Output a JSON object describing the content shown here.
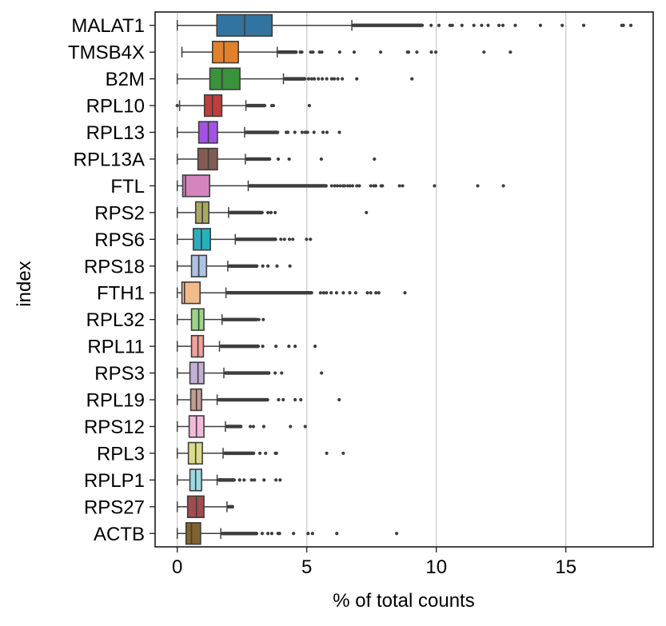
{
  "chart_data": {
    "type": "box",
    "orientation": "horizontal",
    "title": "",
    "xlabel": "% of total counts",
    "ylabel": "index",
    "xlim": [
      -0.9,
      18.3
    ],
    "xticks": [
      0,
      5,
      10,
      15
    ],
    "xtick_labels": [
      "0",
      "5",
      "10",
      "15"
    ],
    "grid": "x",
    "categories": [
      "MALAT1",
      "TMSB4X",
      "B2M",
      "RPL10",
      "RPL13",
      "RPL13A",
      "FTL",
      "RPS2",
      "RPS6",
      "RPS18",
      "FTH1",
      "RPL32",
      "RPL11",
      "RPS3",
      "RPL19",
      "RPS12",
      "RPL3",
      "RPLP1",
      "RPS27",
      "ACTB"
    ],
    "series": [
      {
        "name": "MALAT1",
        "color": "#3274a1",
        "whisker_low": 0.0,
        "q1": 1.53,
        "median": 2.6,
        "q3": 3.66,
        "whisker_high": 6.74,
        "dense_outliers_to": 9.52,
        "outliers": [
          9.8,
          10.1,
          10.53,
          10.62,
          10.99,
          11.45,
          11.75,
          12.0,
          12.42,
          12.57,
          13.05,
          14.02,
          14.86,
          15.69,
          17.16,
          17.22,
          17.51
        ]
      },
      {
        "name": "TMSB4X",
        "color": "#e1812c",
        "whisker_low": 0.18,
        "q1": 1.36,
        "median": 1.8,
        "q3": 2.36,
        "whisker_high": 3.86,
        "dense_outliers_to": 4.65,
        "outliers": [
          4.75,
          4.81,
          5.15,
          5.24,
          5.49,
          5.58,
          6.27,
          6.83,
          7.85,
          8.89,
          8.93,
          9.25,
          9.81,
          9.98,
          11.84,
          12.86
        ]
      },
      {
        "name": "B2M",
        "color": "#3a923a",
        "whisker_low": 0.0,
        "q1": 1.26,
        "median": 1.73,
        "q3": 2.42,
        "whisker_high": 4.1,
        "dense_outliers_to": 4.99,
        "outliers": [
          5.07,
          5.19,
          5.29,
          5.45,
          5.6,
          5.77,
          5.96,
          6.06,
          6.2,
          6.37,
          6.93,
          9.06
        ]
      },
      {
        "name": "RPL10",
        "color": "#c03d3e",
        "whisker_low": 0.09,
        "q1": 1.05,
        "median": 1.36,
        "q3": 1.72,
        "whisker_high": 2.65,
        "dense_outliers_to": 3.44,
        "outliers": [
          0.0,
          3.65,
          3.71,
          5.1
        ]
      },
      {
        "name": "RPL13",
        "color": "#a352e8",
        "whisker_low": 0.0,
        "q1": 0.83,
        "median": 1.2,
        "q3": 1.55,
        "whisker_high": 2.6,
        "dense_outliers_to": 3.94,
        "outliers": [
          4.21,
          4.27,
          4.54,
          4.82,
          4.94,
          5.03,
          5.28,
          5.63,
          5.78,
          6.26
        ]
      },
      {
        "name": "RPL13A",
        "color": "#845b53",
        "whisker_low": 0.0,
        "q1": 0.8,
        "median": 1.2,
        "q3": 1.55,
        "whisker_high": 2.63,
        "dense_outliers_to": 3.63,
        "outliers": [
          3.9,
          4.32,
          5.56,
          7.61
        ]
      },
      {
        "name": "FTL",
        "color": "#d684bd",
        "whisker_low": 0.0,
        "q1": 0.21,
        "median": 0.32,
        "q3": 1.25,
        "whisker_high": 2.74,
        "dense_outliers_to": 5.81,
        "outliers": [
          5.96,
          6.08,
          6.18,
          6.29,
          6.4,
          6.46,
          6.58,
          6.67,
          6.77,
          6.93,
          7.03,
          7.47,
          7.59,
          7.66,
          7.87,
          7.92,
          8.58,
          8.7,
          9.93,
          11.6,
          12.59
        ]
      },
      {
        "name": "RPS2",
        "color": "#a9aa60",
        "whisker_low": 0.0,
        "q1": 0.71,
        "median": 0.97,
        "q3": 1.22,
        "whisker_high": 1.98,
        "dense_outliers_to": 3.34,
        "outliers": [
          3.5,
          3.62,
          3.78,
          7.3
        ]
      },
      {
        "name": "RPS6",
        "color": "#2aaebd",
        "whisker_low": 0.0,
        "q1": 0.62,
        "median": 0.93,
        "q3": 1.28,
        "whisker_high": 2.24,
        "dense_outliers_to": 3.86,
        "outliers": [
          4.0,
          4.14,
          4.33,
          4.46,
          4.99,
          5.14
        ]
      },
      {
        "name": "RPS18",
        "color": "#adc3e0",
        "whisker_low": 0.0,
        "q1": 0.55,
        "median": 0.83,
        "q3": 1.13,
        "whisker_high": 1.95,
        "dense_outliers_to": 3.14,
        "outliers": [
          3.3,
          3.5,
          3.85,
          4.35
        ]
      },
      {
        "name": "FTH1",
        "color": "#f1bb87",
        "whisker_low": 0.0,
        "q1": 0.18,
        "median": 0.28,
        "q3": 0.88,
        "whisker_high": 1.88,
        "dense_outliers_to": 5.25,
        "outliers": [
          5.53,
          5.65,
          5.76,
          5.94,
          6.15,
          6.41,
          6.66,
          6.89,
          7.34,
          7.47,
          7.67,
          7.78,
          8.79
        ]
      },
      {
        "name": "RPL32",
        "color": "#9bd58a",
        "whisker_low": 0.0,
        "q1": 0.55,
        "median": 0.83,
        "q3": 1.03,
        "whisker_high": 1.73,
        "dense_outliers_to": 3.12,
        "outliers": [
          3.15,
          3.32
        ]
      },
      {
        "name": "RPL11",
        "color": "#f5a09d",
        "whisker_low": 0.0,
        "q1": 0.55,
        "median": 0.8,
        "q3": 1.01,
        "whisker_high": 1.63,
        "dense_outliers_to": 3.19,
        "outliers": [
          3.3,
          3.81,
          4.31,
          4.55,
          5.32
        ]
      },
      {
        "name": "RPS3",
        "color": "#c5b0d5",
        "whisker_low": 0.0,
        "q1": 0.49,
        "median": 0.8,
        "q3": 1.03,
        "whisker_high": 1.8,
        "dense_outliers_to": 3.6,
        "outliers": [
          3.78,
          4.03,
          5.57
        ]
      },
      {
        "name": "RPL19",
        "color": "#c49c94",
        "whisker_low": 0.0,
        "q1": 0.52,
        "median": 0.74,
        "q3": 0.94,
        "whisker_high": 1.54,
        "dense_outliers_to": 3.55,
        "outliers": [
          3.91,
          4.09,
          4.55,
          4.77,
          6.25
        ]
      },
      {
        "name": "RPS12",
        "color": "#f4bbd8",
        "whisker_low": 0.0,
        "q1": 0.46,
        "median": 0.74,
        "q3": 1.03,
        "whisker_high": 1.86,
        "dense_outliers_to": 2.52,
        "outliers": [
          2.82,
          2.94,
          3.34,
          4.37,
          4.94
        ]
      },
      {
        "name": "RPL3",
        "color": "#dbdb8d",
        "whisker_low": 0.0,
        "q1": 0.43,
        "median": 0.71,
        "q3": 0.97,
        "whisker_high": 1.77,
        "dense_outliers_to": 3.01,
        "outliers": [
          3.19,
          3.41,
          3.79,
          3.83,
          5.77,
          6.41
        ]
      },
      {
        "name": "RPLP1",
        "color": "#9edae5",
        "whisker_low": 0.0,
        "q1": 0.49,
        "median": 0.71,
        "q3": 0.94,
        "whisker_high": 1.54,
        "dense_outliers_to": 2.26,
        "outliers": [
          2.41,
          2.58,
          2.87,
          2.98,
          3.35,
          3.81,
          3.97
        ]
      },
      {
        "name": "RPS27",
        "color": "#a34b4f",
        "whisker_low": 0.0,
        "q1": 0.4,
        "median": 0.74,
        "q3": 1.03,
        "whisker_high": 1.92,
        "dense_outliers_to": 2.2,
        "outliers": []
      },
      {
        "name": "ACTB",
        "color": "#80632e",
        "whisker_low": 0.0,
        "q1": 0.34,
        "median": 0.55,
        "q3": 0.9,
        "whisker_high": 1.68,
        "dense_outliers_to": 3.13,
        "outliers": [
          3.28,
          3.5,
          3.65,
          3.89,
          3.95,
          4.49,
          5.05,
          5.22,
          6.16,
          8.47
        ]
      }
    ],
    "colors": {
      "edge": "#3d3d3d",
      "grid": "#cccccc",
      "frame": "#1a1a1a",
      "background": "#ffffff"
    }
  }
}
